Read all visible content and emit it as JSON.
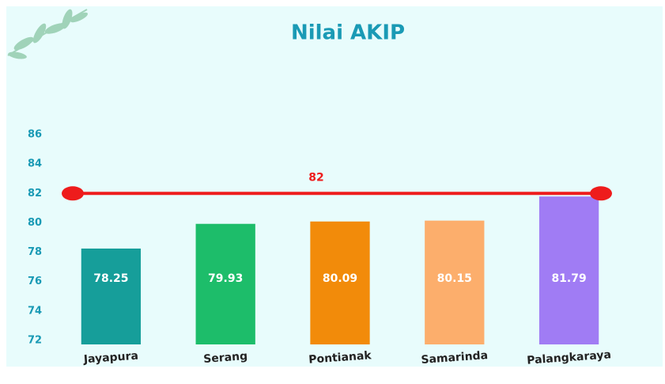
{
  "chart_data": {
    "type": "bar",
    "title": "Nilai AKIP",
    "categories": [
      "Jayapura",
      "Serang",
      "Pontianak",
      "Samarinda",
      "Palangkaraya"
    ],
    "values": [
      78.25,
      79.93,
      80.09,
      80.15,
      81.79
    ],
    "colors": [
      "#169e9a",
      "#1dbd6a",
      "#f28b0a",
      "#fcae6c",
      "#a07cf4"
    ],
    "ylim": [
      72,
      86
    ],
    "yticks": [
      72,
      74,
      76,
      78,
      80,
      82,
      84,
      86
    ],
    "target_line": 82,
    "target_color": "#ee1c1c"
  }
}
